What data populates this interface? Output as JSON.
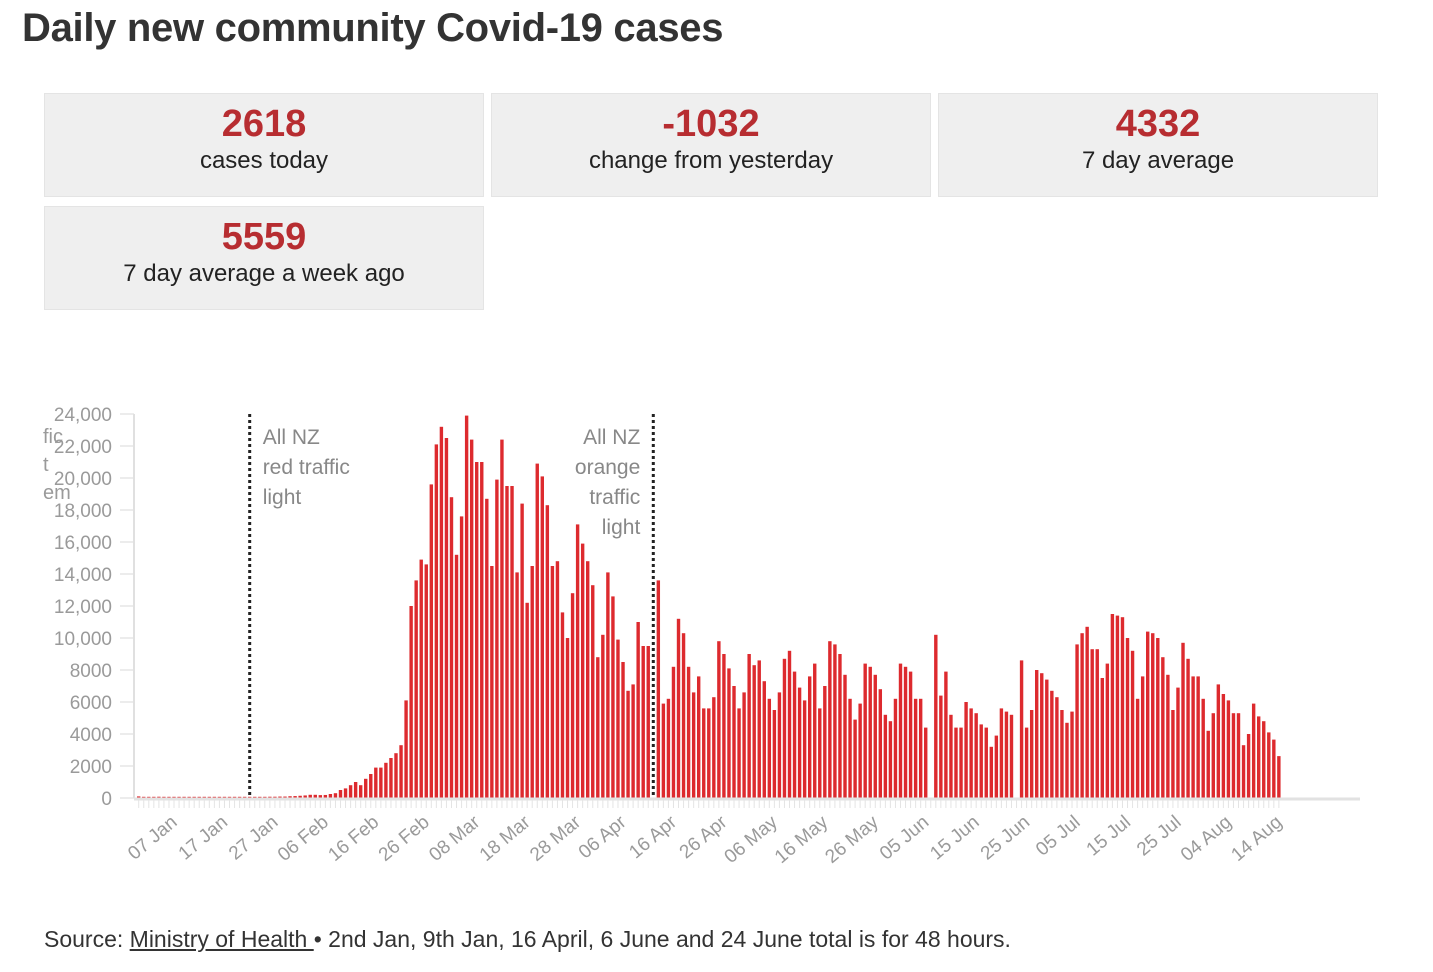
{
  "title": "Daily new community Covid-19 cases",
  "stats": [
    {
      "value": "2618",
      "label": "cases today"
    },
    {
      "value": "-1032",
      "label": "change from yesterday"
    },
    {
      "value": "4332",
      "label": "7 day average"
    },
    {
      "value": "5559",
      "label": "7 day average a week ago"
    }
  ],
  "colors": {
    "bar": "#dd2a2e",
    "stat_value": "#b72d31",
    "stat_bg": "#efefef"
  },
  "source": {
    "prefix": "Source: ",
    "link_text": "Ministry of Health ",
    "suffix": "• 2nd Jan, 9th Jan, 16 April, 6 June and 24 June total is for 48 hours."
  },
  "chart_data": {
    "type": "bar",
    "title": "Daily new community Covid-19 cases",
    "xlabel": "",
    "ylabel": "",
    "ylim": [
      0,
      24000
    ],
    "y_ticks": [
      0,
      2000,
      4000,
      6000,
      8000,
      10000,
      12000,
      14000,
      16000,
      18000,
      20000,
      22000,
      24000
    ],
    "y_tick_labels": [
      "0",
      "2000",
      "4000",
      "6000",
      "8000",
      "10,000",
      "12,000",
      "14,000",
      "16,000",
      "18,000",
      "20,000",
      "22,000",
      "24,000"
    ],
    "y_axis_overlap_text": [
      "fic",
      "t",
      "em"
    ],
    "start_date": "2022-01-02",
    "x_tick_labels": [
      {
        "label": "07 Jan",
        "day": 5
      },
      {
        "label": "17 Jan",
        "day": 15
      },
      {
        "label": "27 Jan",
        "day": 25
      },
      {
        "label": "06 Feb",
        "day": 35
      },
      {
        "label": "16 Feb",
        "day": 45
      },
      {
        "label": "26 Feb",
        "day": 55
      },
      {
        "label": "08 Mar",
        "day": 65
      },
      {
        "label": "18 Mar",
        "day": 75
      },
      {
        "label": "28 Mar",
        "day": 85
      },
      {
        "label": "06 Apr",
        "day": 94
      },
      {
        "label": "16 Apr",
        "day": 104
      },
      {
        "label": "26 Apr",
        "day": 114
      },
      {
        "label": "06 May",
        "day": 124
      },
      {
        "label": "16 May",
        "day": 134
      },
      {
        "label": "26 May",
        "day": 144
      },
      {
        "label": "05 Jun",
        "day": 154
      },
      {
        "label": "15 Jun",
        "day": 164
      },
      {
        "label": "25 Jun",
        "day": 174
      },
      {
        "label": "05 Jul",
        "day": 184
      },
      {
        "label": "15 Jul",
        "day": 194
      },
      {
        "label": "25 Jul",
        "day": 204
      },
      {
        "label": "04 Aug",
        "day": 214
      },
      {
        "label": "14 Aug",
        "day": 224
      }
    ],
    "annotations": [
      {
        "day": 22,
        "lines": [
          "All NZ",
          "red traffic",
          "light"
        ],
        "align": "left"
      },
      {
        "day": 102,
        "lines": [
          "All NZ",
          "orange",
          "traffic",
          "light"
        ],
        "align": "right"
      }
    ],
    "values": [
      100,
      30,
      30,
      30,
      80,
      30,
      30,
      30,
      30,
      30,
      30,
      30,
      40,
      30,
      30,
      30,
      30,
      30,
      30,
      30,
      30,
      30,
      40,
      40,
      40,
      40,
      80,
      80,
      90,
      90,
      110,
      120,
      140,
      160,
      200,
      200,
      180,
      190,
      250,
      300,
      500,
      600,
      800,
      1000,
      800,
      1200,
      1500,
      1900,
      1900,
      2200,
      2500,
      2800,
      3300,
      6100,
      12000,
      13600,
      14900,
      14600,
      19600,
      22100,
      23200,
      22500,
      18800,
      15200,
      17600,
      23900,
      22400,
      21000,
      21000,
      18700,
      14500,
      19900,
      22400,
      19500,
      19500,
      14100,
      18400,
      12200,
      14500,
      20900,
      20100,
      18300,
      14500,
      14800,
      11600,
      10000,
      12800,
      17100,
      15900,
      14800,
      13300,
      8800,
      10200,
      14100,
      12600,
      9900,
      8500,
      6700,
      7100,
      11000,
      9500,
      9500,
      0,
      13600,
      5900,
      6200,
      8200,
      11200,
      10300,
      8200,
      6600,
      7600,
      5600,
      5600,
      6300,
      9800,
      9000,
      8100,
      7000,
      5600,
      6600,
      9000,
      8300,
      8600,
      7300,
      6200,
      5500,
      6600,
      8700,
      9200,
      7900,
      6900,
      6100,
      7600,
      8400,
      5600,
      7000,
      9800,
      9600,
      9000,
      7700,
      6200,
      4900,
      5900,
      8400,
      8200,
      7700,
      6800,
      5200,
      4800,
      6200,
      8400,
      8200,
      7900,
      6200,
      6200,
      4400,
      0,
      10200,
      6400,
      7900,
      5200,
      4400,
      4400,
      6000,
      5600,
      5300,
      4600,
      4400,
      3200,
      3900,
      5600,
      5400,
      5200,
      0,
      8600,
      4400,
      5500,
      8000,
      7800,
      7400,
      6700,
      6300,
      5500,
      4700,
      5400,
      9600,
      10300,
      10700,
      9300,
      9300,
      7500,
      8400,
      11500,
      11400,
      11300,
      10000,
      9200,
      6200,
      7600,
      10400,
      10300,
      10000,
      8800,
      7700,
      5500,
      6900,
      9700,
      8700,
      7600,
      7600,
      6200,
      4200,
      5300,
      7100,
      6500,
      6100,
      5300,
      5300,
      3300,
      4000,
      5900,
      5100,
      4800,
      4100,
      3650,
      2618
    ]
  }
}
